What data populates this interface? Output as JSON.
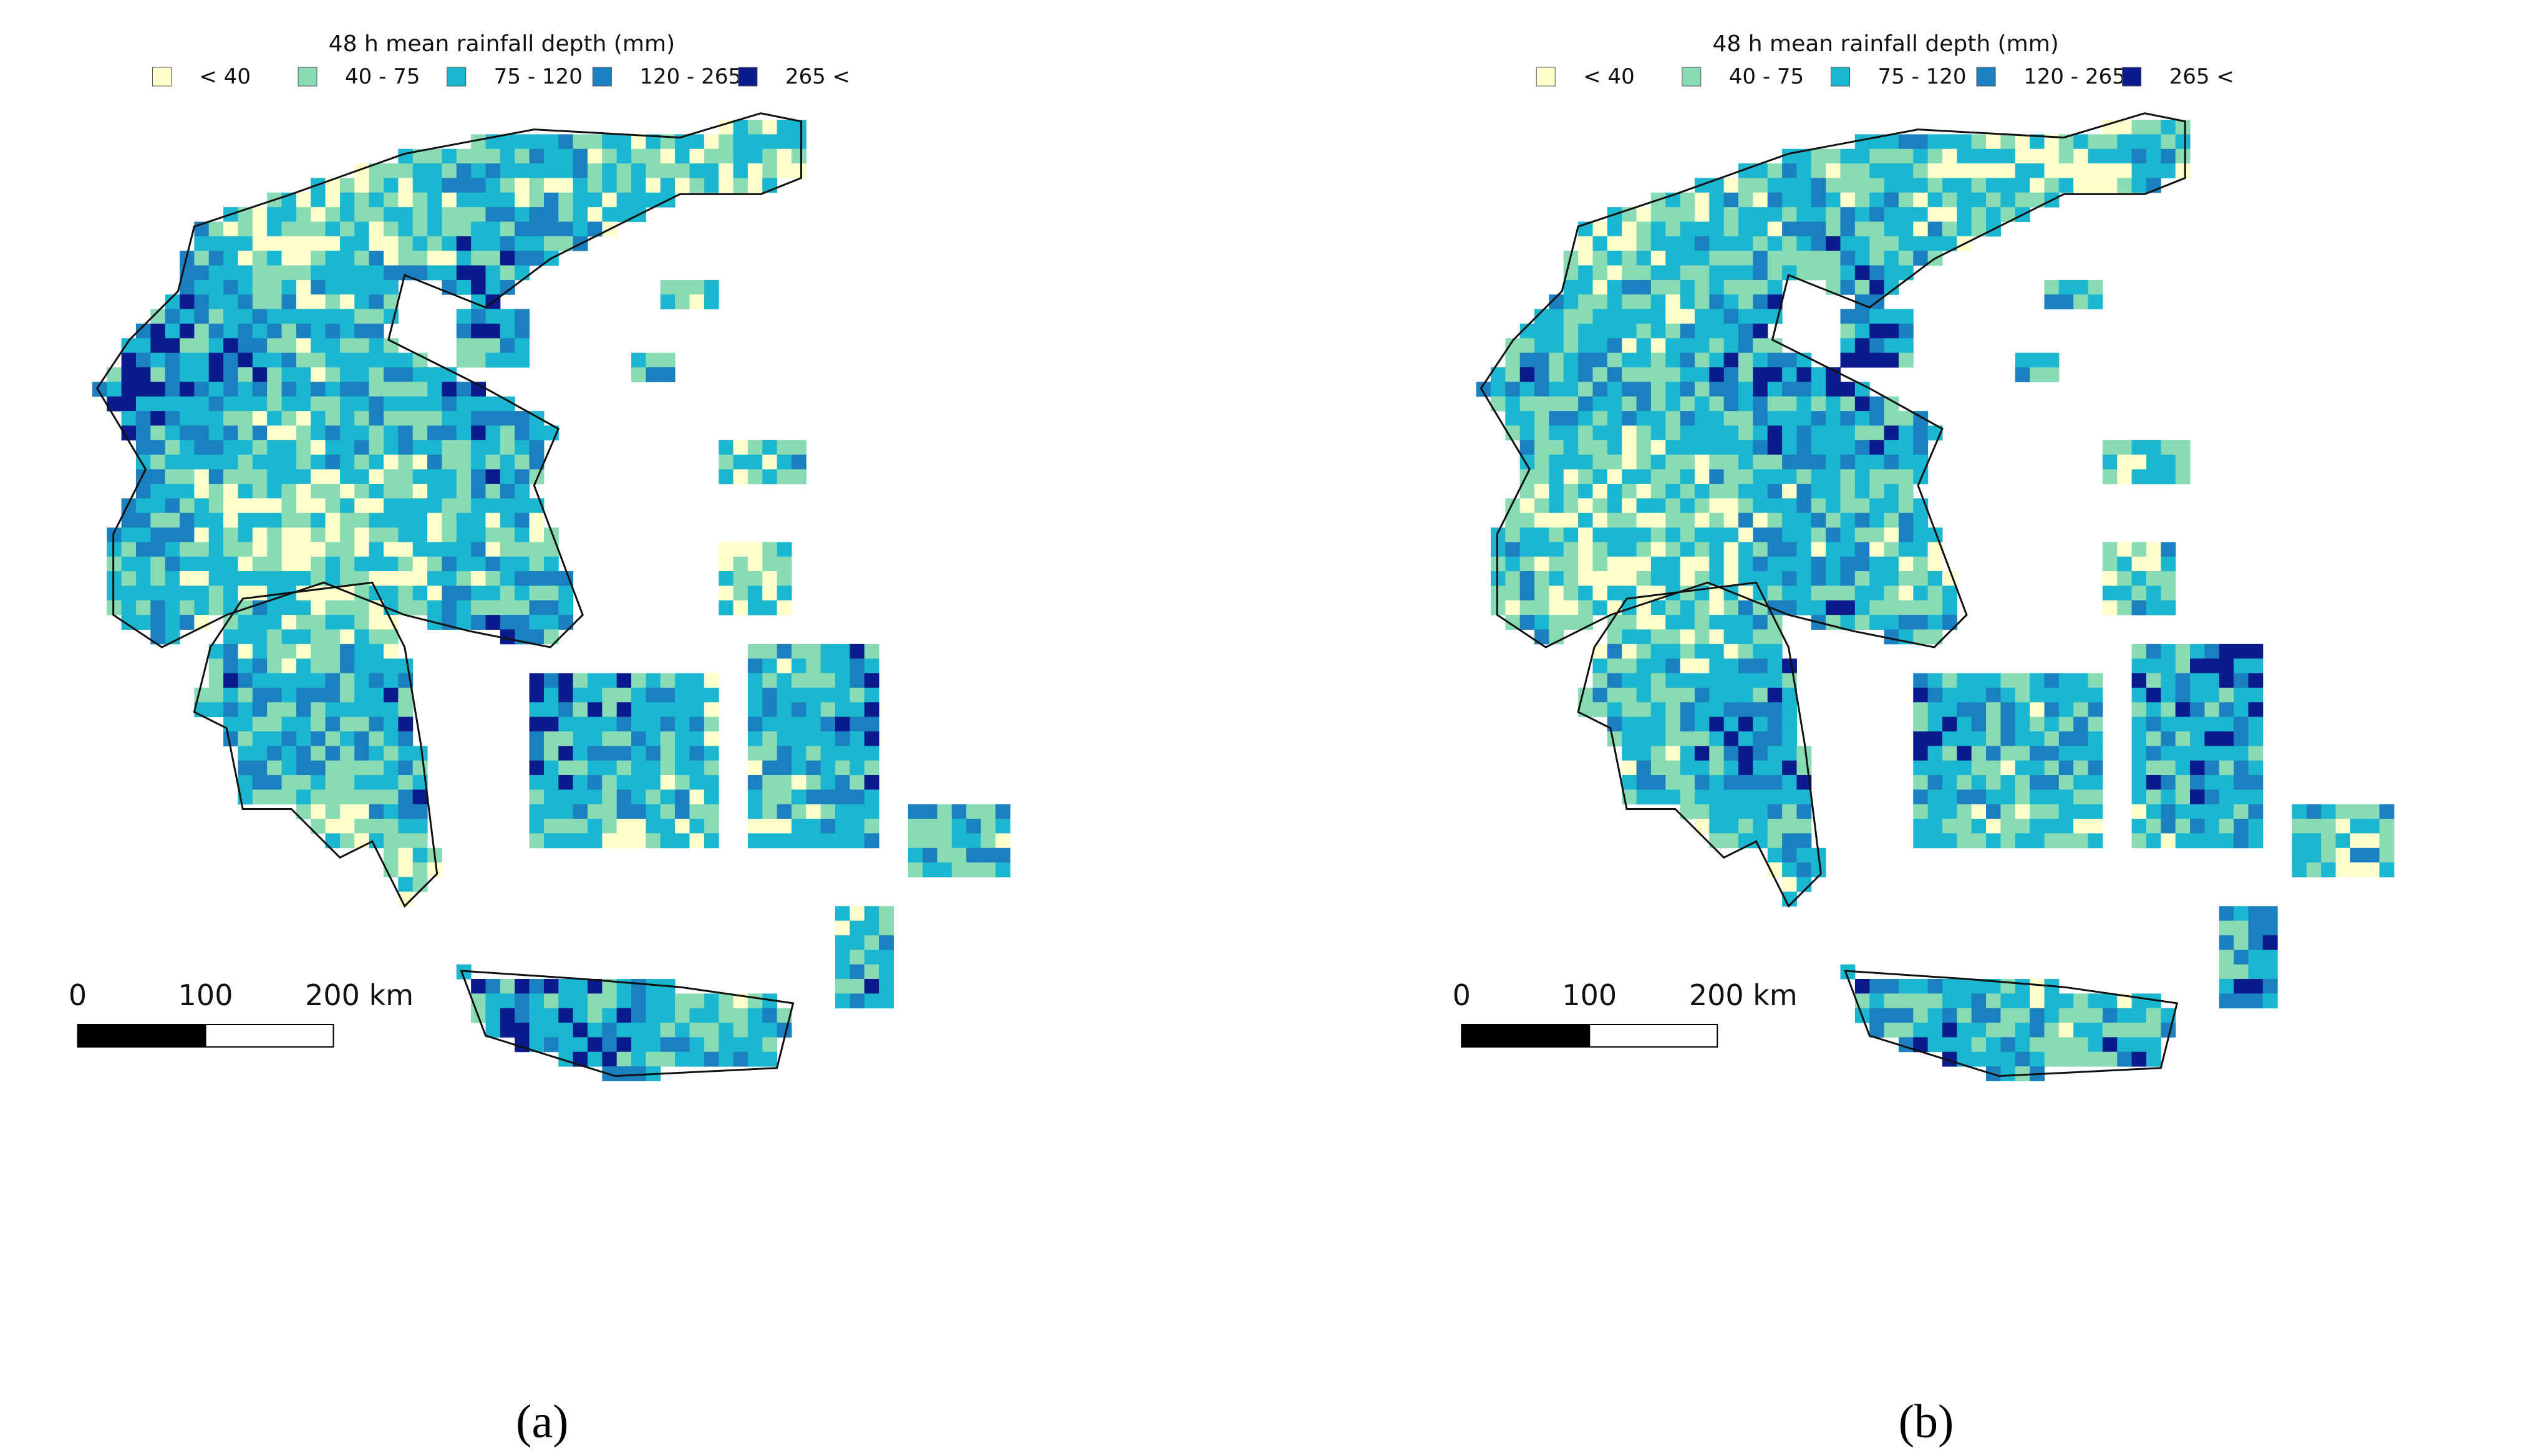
{
  "panels": [
    {
      "legend": {
        "title": "48 h mean rainfall depth (mm)",
        "items": [
          {
            "label": "< 40",
            "color": "#ffffcc"
          },
          {
            "label": "40 - 75",
            "color": "#88dbb4"
          },
          {
            "label": "75 - 120",
            "color": "#1bb6cf"
          },
          {
            "label": "120 - 265",
            "color": "#1a80c0"
          },
          {
            "label": "265 <",
            "color": "#0b1a8c"
          }
        ]
      },
      "scale_bar": {
        "labels": [
          "0",
          "100",
          "200 km"
        ]
      },
      "caption": "(a)"
    },
    {
      "legend": {
        "title": "48 h mean rainfall depth (mm)",
        "items": [
          {
            "label": "< 40",
            "color": "#ffffcc"
          },
          {
            "label": "40 - 75",
            "color": "#88dbb4"
          },
          {
            "label": "75 - 120",
            "color": "#1bb6cf"
          },
          {
            "label": "120 - 265",
            "color": "#1a80c0"
          },
          {
            "label": "265 <",
            "color": "#0b1a8c"
          }
        ]
      },
      "scale_bar": {
        "labels": [
          "0",
          "100",
          "200 km"
        ]
      },
      "caption": "(b)"
    }
  ]
}
